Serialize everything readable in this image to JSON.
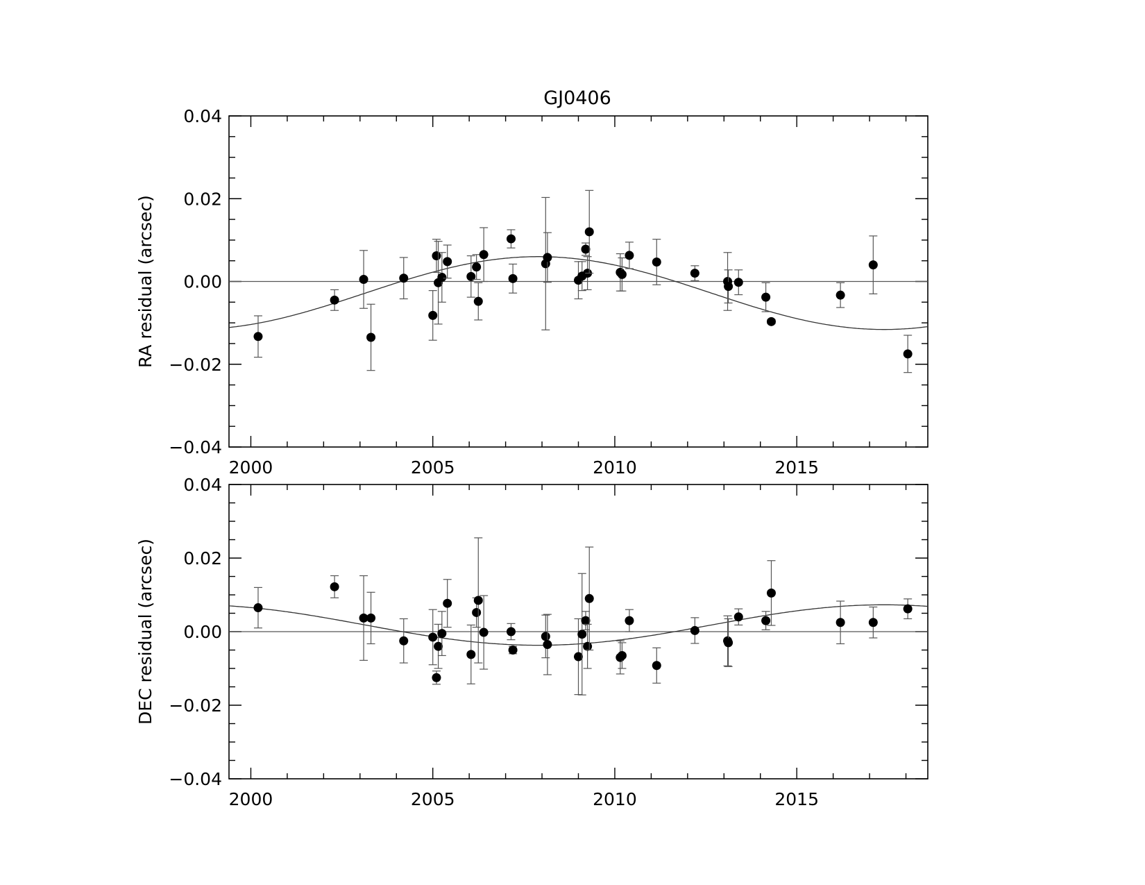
{
  "figure": {
    "title": "GJ0406"
  },
  "chart_data": [
    {
      "type": "scatter",
      "panel": "top",
      "ylabel": "RA residual (arcsec)",
      "xlabel": "",
      "xlim": [
        1999.4,
        2018.6
      ],
      "ylim": [
        -0.04,
        0.04
      ],
      "xticks": [
        2000,
        2005,
        2010,
        2015
      ],
      "xtick_labels": [
        "2000",
        "2005",
        "2010",
        "2015"
      ],
      "yticks": [
        -0.04,
        -0.02,
        0.0,
        0.02,
        0.04
      ],
      "ytick_labels": [
        "−0.04",
        "−0.02",
        "0.00",
        "0.02",
        "0.04"
      ],
      "grid": false,
      "reference_line": 0.0,
      "points": [
        {
          "x": 2000.2,
          "y": -0.0133,
          "err": 0.005
        },
        {
          "x": 2002.3,
          "y": -0.0045,
          "err": 0.0025
        },
        {
          "x": 2003.1,
          "y": 0.0005,
          "err": 0.007
        },
        {
          "x": 2003.3,
          "y": -0.0135,
          "err": 0.008
        },
        {
          "x": 2004.2,
          "y": 0.0008,
          "err": 0.005
        },
        {
          "x": 2005.0,
          "y": -0.0082,
          "err": 0.006
        },
        {
          "x": 2005.1,
          "y": 0.0062,
          "err": 0.004
        },
        {
          "x": 2005.15,
          "y": -0.0003,
          "err": 0.01
        },
        {
          "x": 2005.25,
          "y": 0.001,
          "err": 0.006
        },
        {
          "x": 2005.4,
          "y": 0.0048,
          "err": 0.004
        },
        {
          "x": 2006.05,
          "y": 0.0012,
          "err": 0.005
        },
        {
          "x": 2006.2,
          "y": 0.0035,
          "err": 0.003
        },
        {
          "x": 2006.25,
          "y": -0.0048,
          "err": 0.0045
        },
        {
          "x": 2006.4,
          "y": 0.0065,
          "err": 0.0065
        },
        {
          "x": 2007.15,
          "y": 0.0103,
          "err": 0.0022
        },
        {
          "x": 2007.2,
          "y": 0.0007,
          "err": 0.0035
        },
        {
          "x": 2008.1,
          "y": 0.0043,
          "err": 0.016
        },
        {
          "x": 2008.15,
          "y": 0.0058,
          "err": 0.006
        },
        {
          "x": 2009.0,
          "y": 0.0003,
          "err": 0.0045
        },
        {
          "x": 2009.1,
          "y": 0.0013,
          "err": 0.0035
        },
        {
          "x": 2009.2,
          "y": 0.0078,
          "err": 0.0015
        },
        {
          "x": 2009.25,
          "y": 0.002,
          "err": 0.004
        },
        {
          "x": 2009.3,
          "y": 0.012,
          "err": 0.01
        },
        {
          "x": 2010.15,
          "y": 0.0022,
          "err": 0.0045
        },
        {
          "x": 2010.2,
          "y": 0.0017,
          "err": 0.004
        },
        {
          "x": 2010.4,
          "y": 0.0063,
          "err": 0.0032
        },
        {
          "x": 2011.15,
          "y": 0.0047,
          "err": 0.0055
        },
        {
          "x": 2012.2,
          "y": 0.002,
          "err": 0.0018
        },
        {
          "x": 2013.1,
          "y": 0.0,
          "err": 0.007
        },
        {
          "x": 2013.12,
          "y": -0.0012,
          "err": 0.004
        },
        {
          "x": 2013.4,
          "y": -0.0002,
          "err": 0.003
        },
        {
          "x": 2014.15,
          "y": -0.0038,
          "err": 0.0035
        },
        {
          "x": 2014.3,
          "y": -0.0097,
          "err": 0.0005
        },
        {
          "x": 2016.2,
          "y": -0.0033,
          "err": 0.003
        },
        {
          "x": 2017.1,
          "y": 0.004,
          "err": 0.007
        },
        {
          "x": 2018.05,
          "y": -0.0175,
          "err": 0.0045
        }
      ],
      "model_curve": {
        "amplitude": 0.0088,
        "offset": -0.0028,
        "peak_year": 2007.9,
        "period_years": 19.0
      }
    },
    {
      "type": "scatter",
      "panel": "bottom",
      "ylabel": "DEC residual (arcsec)",
      "xlabel": "",
      "xlim": [
        1999.4,
        2018.6
      ],
      "ylim": [
        -0.04,
        0.04
      ],
      "xticks": [
        2000,
        2005,
        2010,
        2015
      ],
      "xtick_labels": [
        "2000",
        "2005",
        "2010",
        "2015"
      ],
      "yticks": [
        -0.04,
        -0.02,
        0.0,
        0.02,
        0.04
      ],
      "ytick_labels": [
        "−0.04",
        "−0.02",
        "0.00",
        "0.02",
        "0.04"
      ],
      "grid": false,
      "reference_line": 0.0,
      "points": [
        {
          "x": 2000.2,
          "y": 0.0065,
          "err": 0.0055
        },
        {
          "x": 2002.3,
          "y": 0.0122,
          "err": 0.003
        },
        {
          "x": 2003.1,
          "y": 0.0037,
          "err": 0.0115
        },
        {
          "x": 2003.3,
          "y": 0.0037,
          "err": 0.007
        },
        {
          "x": 2004.2,
          "y": -0.0025,
          "err": 0.006
        },
        {
          "x": 2005.0,
          "y": -0.0015,
          "err": 0.0075
        },
        {
          "x": 2005.1,
          "y": -0.0125,
          "err": 0.0018
        },
        {
          "x": 2005.15,
          "y": -0.004,
          "err": 0.006
        },
        {
          "x": 2005.25,
          "y": -0.0005,
          "err": 0.006
        },
        {
          "x": 2005.4,
          "y": 0.0077,
          "err": 0.0065
        },
        {
          "x": 2006.05,
          "y": -0.0062,
          "err": 0.008
        },
        {
          "x": 2006.2,
          "y": 0.0052,
          "err": 0.004
        },
        {
          "x": 2006.25,
          "y": 0.0085,
          "err": 0.017
        },
        {
          "x": 2006.4,
          "y": -0.0002,
          "err": 0.01
        },
        {
          "x": 2007.15,
          "y": 0.0,
          "err": 0.0022
        },
        {
          "x": 2007.2,
          "y": -0.005,
          "err": 0.001
        },
        {
          "x": 2008.1,
          "y": -0.0013,
          "err": 0.0058
        },
        {
          "x": 2008.15,
          "y": -0.0035,
          "err": 0.0082
        },
        {
          "x": 2009.0,
          "y": -0.0068,
          "err": 0.0103
        },
        {
          "x": 2009.1,
          "y": -0.0007,
          "err": 0.0165
        },
        {
          "x": 2009.2,
          "y": 0.003,
          "err": 0.0025
        },
        {
          "x": 2009.25,
          "y": -0.004,
          "err": 0.006
        },
        {
          "x": 2009.3,
          "y": 0.009,
          "err": 0.014
        },
        {
          "x": 2010.15,
          "y": -0.007,
          "err": 0.0045
        },
        {
          "x": 2010.2,
          "y": -0.0065,
          "err": 0.0035
        },
        {
          "x": 2010.4,
          "y": 0.003,
          "err": 0.003
        },
        {
          "x": 2011.15,
          "y": -0.0092,
          "err": 0.0048
        },
        {
          "x": 2012.2,
          "y": 0.0003,
          "err": 0.0035
        },
        {
          "x": 2013.1,
          "y": -0.0025,
          "err": 0.0068
        },
        {
          "x": 2013.12,
          "y": -0.003,
          "err": 0.0065
        },
        {
          "x": 2013.4,
          "y": 0.004,
          "err": 0.0022
        },
        {
          "x": 2014.15,
          "y": 0.003,
          "err": 0.0025
        },
        {
          "x": 2014.3,
          "y": 0.0105,
          "err": 0.0088
        },
        {
          "x": 2016.2,
          "y": 0.0025,
          "err": 0.0058
        },
        {
          "x": 2017.1,
          "y": 0.0025,
          "err": 0.0042
        },
        {
          "x": 2018.05,
          "y": 0.0062,
          "err": 0.0027
        }
      ],
      "model_curve": {
        "amplitude": -0.0055,
        "offset": 0.0018,
        "peak_year": 2007.9,
        "period_years": 19.0
      }
    }
  ]
}
